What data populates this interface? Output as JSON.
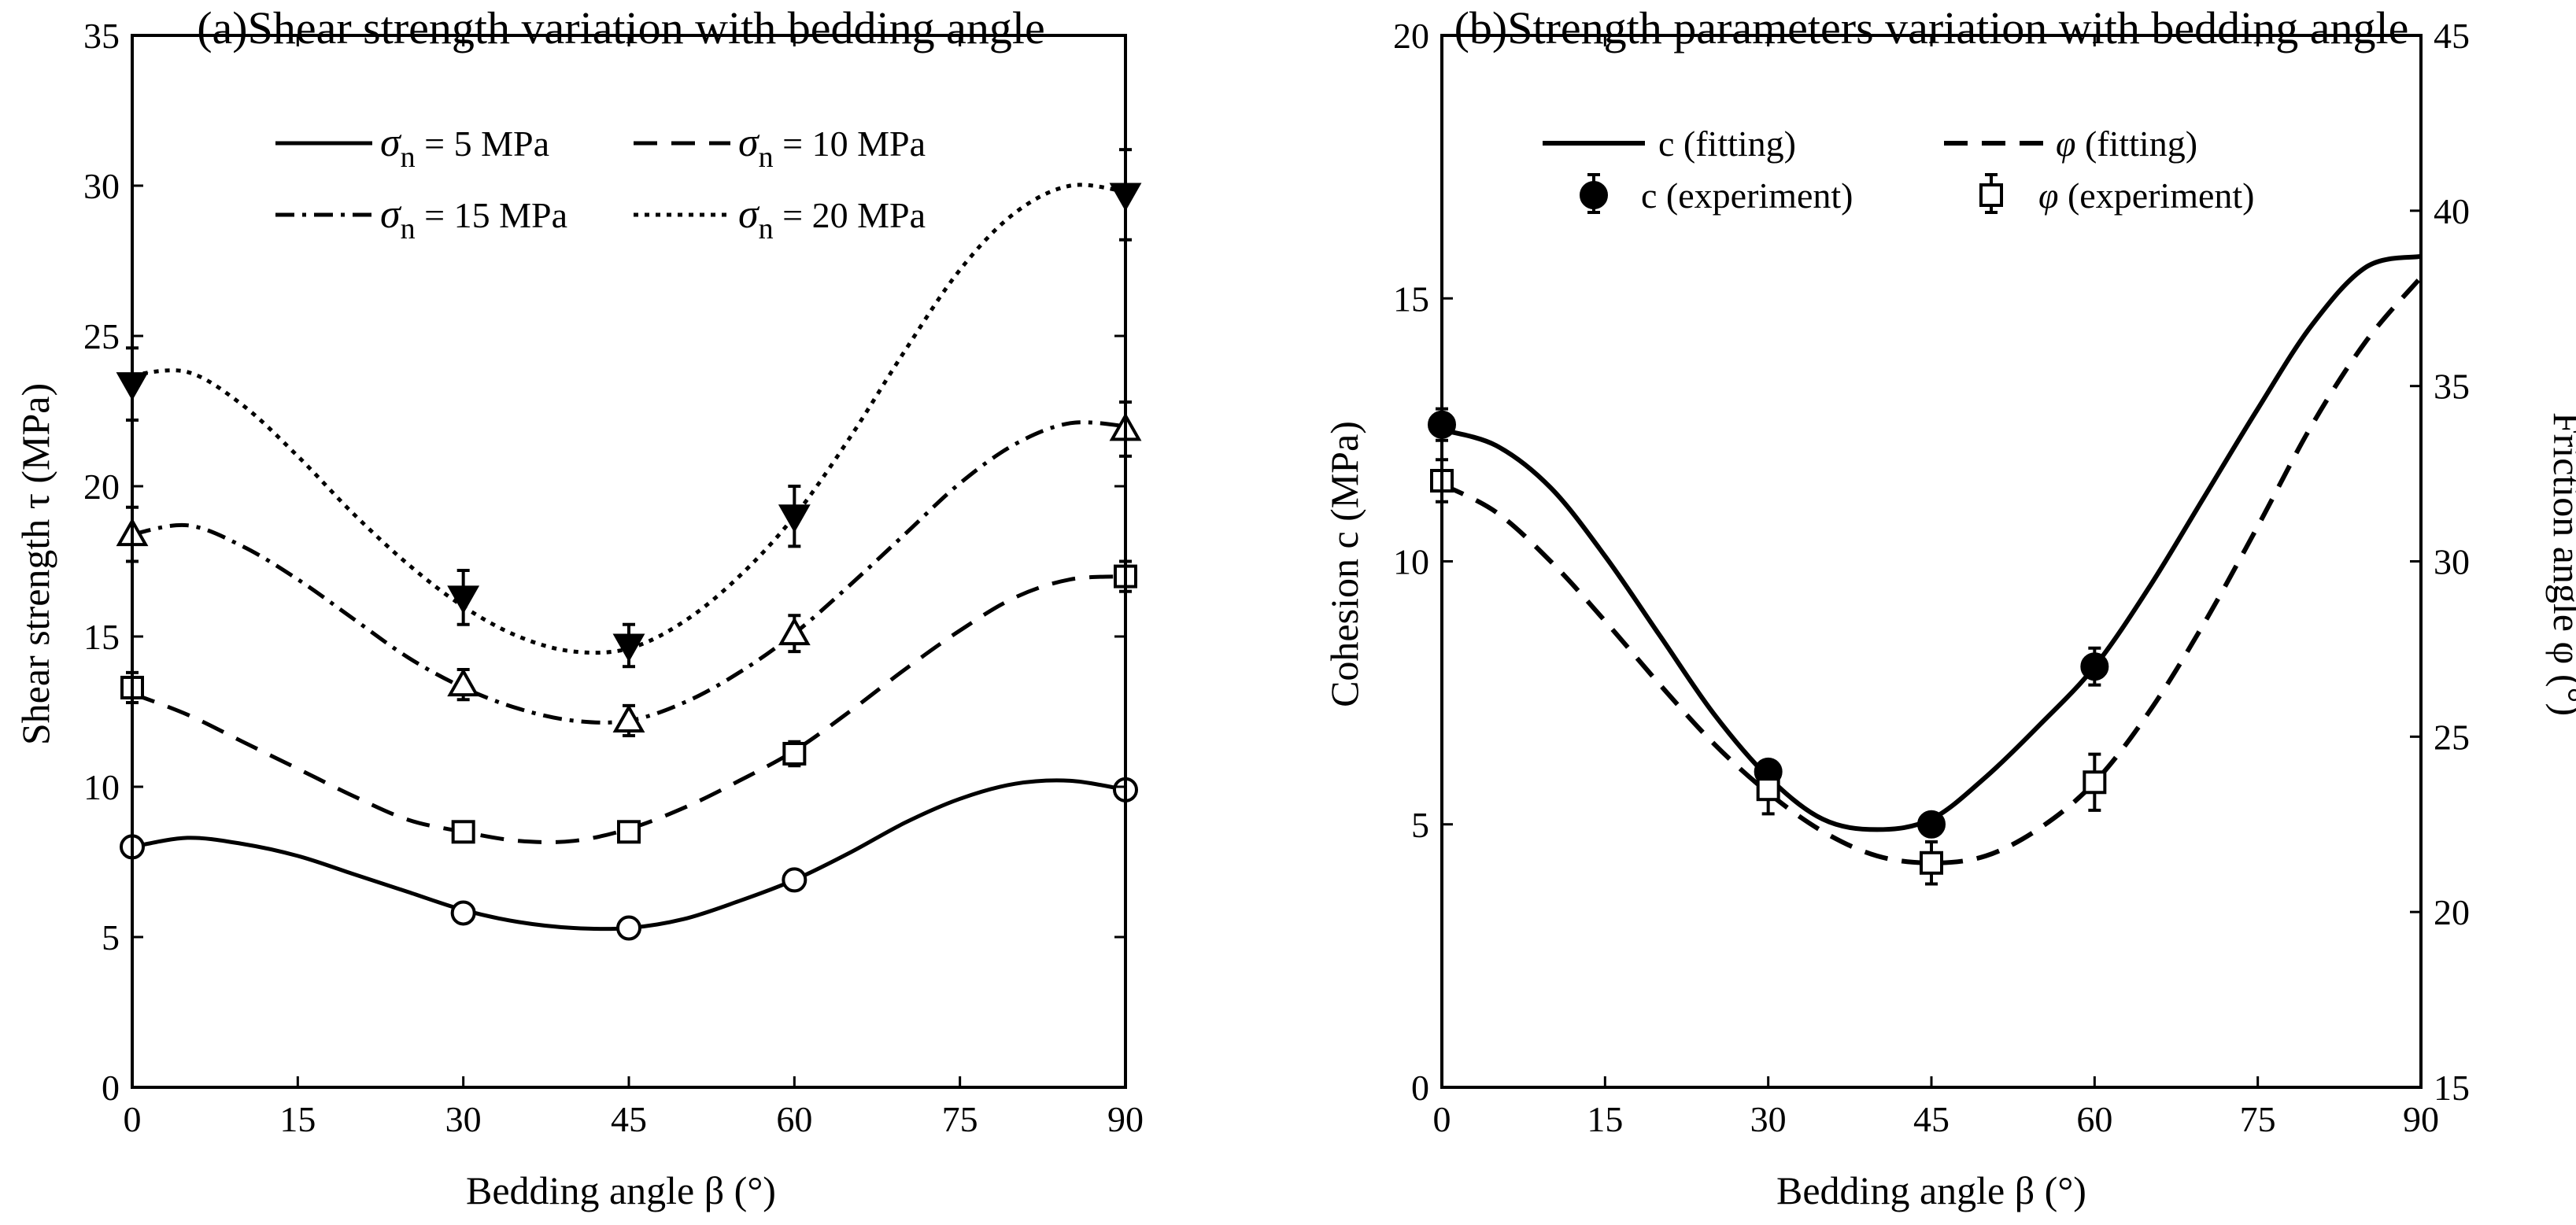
{
  "chart_data": [
    {
      "type": "line",
      "title": "(a)Shear strength variation with bedding angle",
      "xlabel": "Bedding angle β (°)",
      "ylabel": "Shear strength τ (MPa)",
      "xlim": [
        0,
        90
      ],
      "ylim": [
        0,
        35
      ],
      "xticks": [
        0,
        15,
        30,
        45,
        60,
        75,
        90
      ],
      "yticks": [
        0,
        5,
        10,
        15,
        20,
        25,
        30,
        35
      ],
      "grid": false,
      "legend_position": "top",
      "x_experiment": [
        0,
        30,
        45,
        60,
        90
      ],
      "series": [
        {
          "name_symbol": "σ",
          "name_sub": "n",
          "name_value": " = 5 MPa",
          "dash": "solid",
          "marker": "circle-open",
          "values": [
            8.0,
            5.8,
            5.3,
            6.9,
            9.9
          ],
          "errors": [
            0.1,
            0.2,
            0.2,
            0.2,
            0.1
          ],
          "fit_x": [
            0,
            5,
            10,
            15,
            20,
            25,
            30,
            35,
            40,
            45,
            50,
            55,
            60,
            65,
            70,
            75,
            80,
            85,
            90
          ],
          "fit_y": [
            8.0,
            8.3,
            8.1,
            7.7,
            7.1,
            6.5,
            5.9,
            5.5,
            5.3,
            5.3,
            5.6,
            6.2,
            6.9,
            7.8,
            8.8,
            9.6,
            10.1,
            10.2,
            9.9
          ]
        },
        {
          "name_symbol": "σ",
          "name_sub": "n",
          "name_value": " = 10 MPa",
          "dash": "dash",
          "marker": "square-open",
          "values": [
            13.3,
            8.5,
            8.5,
            11.1,
            17.0
          ],
          "errors": [
            0.5,
            0.2,
            0.2,
            0.4,
            0.5
          ],
          "fit_x": [
            0,
            5,
            10,
            15,
            20,
            25,
            30,
            35,
            40,
            45,
            50,
            55,
            60,
            65,
            70,
            75,
            80,
            85,
            90
          ],
          "fit_y": [
            13.1,
            12.4,
            11.5,
            10.6,
            9.7,
            8.9,
            8.5,
            8.2,
            8.2,
            8.6,
            9.3,
            10.2,
            11.2,
            12.5,
            13.9,
            15.2,
            16.3,
            16.9,
            17.0
          ]
        },
        {
          "name_symbol": "σ",
          "name_sub": "n",
          "name_value": " = 15 MPa",
          "dash": "dashdot",
          "marker": "triangle-up-open",
          "values": [
            18.4,
            13.4,
            12.2,
            15.1,
            21.9
          ],
          "errors": [
            0.9,
            0.5,
            0.5,
            0.6,
            0.9
          ],
          "fit_x": [
            0,
            5,
            10,
            15,
            20,
            25,
            30,
            35,
            40,
            45,
            50,
            55,
            60,
            65,
            70,
            75,
            80,
            85,
            90
          ],
          "fit_y": [
            18.4,
            18.7,
            18.0,
            16.9,
            15.6,
            14.3,
            13.3,
            12.6,
            12.2,
            12.2,
            12.8,
            13.8,
            15.1,
            16.7,
            18.4,
            20.1,
            21.4,
            22.1,
            22.0
          ]
        },
        {
          "name_symbol": "σ",
          "name_sub": "n",
          "name_value": " = 20 MPa",
          "dash": "dot",
          "marker": "triangle-down-filled",
          "values": [
            23.4,
            16.3,
            14.7,
            19.0,
            29.7
          ],
          "errors": [
            1.2,
            0.9,
            0.7,
            1.0,
            1.5
          ],
          "fit_x": [
            0,
            5,
            10,
            15,
            20,
            25,
            30,
            35,
            40,
            45,
            50,
            55,
            60,
            65,
            70,
            75,
            80,
            85,
            90
          ],
          "fit_y": [
            23.7,
            23.8,
            22.7,
            21.0,
            19.1,
            17.4,
            16.0,
            15.0,
            14.5,
            14.6,
            15.5,
            17.0,
            19.0,
            21.6,
            24.5,
            27.2,
            29.1,
            30.0,
            29.8
          ]
        }
      ]
    },
    {
      "type": "line",
      "title": "(b)Strength parameters variation with bedding angle",
      "xlabel": "Bedding angle β (°)",
      "ylabel": "Cohesion c (MPa)",
      "y2label": "Friction angle φ (°)",
      "xlim": [
        0,
        90
      ],
      "ylim": [
        0,
        20
      ],
      "y2lim": [
        15,
        45
      ],
      "xticks": [
        0,
        15,
        30,
        45,
        60,
        75,
        90
      ],
      "yticks": [
        0,
        5,
        10,
        15,
        20
      ],
      "y2ticks": [
        15,
        20,
        25,
        30,
        35,
        40,
        45
      ],
      "grid": false,
      "legend_position": "top",
      "x_experiment": [
        0,
        30,
        45,
        60
      ],
      "series": [
        {
          "name": "c (fitting)",
          "axis": "left",
          "dash": "solid",
          "fit_x": [
            0,
            5,
            10,
            15,
            20,
            25,
            30,
            35,
            40,
            45,
            50,
            55,
            60,
            65,
            70,
            75,
            80,
            85,
            90
          ],
          "fit_y": [
            12.5,
            12.2,
            11.4,
            10.1,
            8.6,
            7.1,
            5.9,
            5.1,
            4.9,
            5.1,
            5.9,
            6.9,
            8.0,
            9.5,
            11.2,
            12.9,
            14.5,
            15.6,
            15.8
          ]
        },
        {
          "name": "φ (fitting)",
          "axis": "right",
          "dash": "dash",
          "fit_x": [
            0,
            5,
            10,
            15,
            20,
            25,
            30,
            35,
            40,
            45,
            50,
            55,
            60,
            65,
            70,
            75,
            80,
            85,
            90
          ],
          "fit_y": [
            32.2,
            31.4,
            30.0,
            28.3,
            26.5,
            24.8,
            23.4,
            22.3,
            21.6,
            21.4,
            21.6,
            22.4,
            23.7,
            25.7,
            28.2,
            31.0,
            33.9,
            36.3,
            38.1
          ]
        },
        {
          "name": "c (experiment)",
          "axis": "left",
          "marker": "circle-filled",
          "values": [
            12.6,
            6.0,
            5.0,
            8.0
          ],
          "errors": [
            0.3,
            0.2,
            0.15,
            0.35
          ]
        },
        {
          "name": "φ (experiment)",
          "axis": "right",
          "marker": "square-open",
          "values": [
            32.3,
            23.5,
            21.4,
            23.7
          ],
          "errors": [
            0.6,
            0.7,
            0.6,
            0.8
          ]
        }
      ]
    }
  ]
}
